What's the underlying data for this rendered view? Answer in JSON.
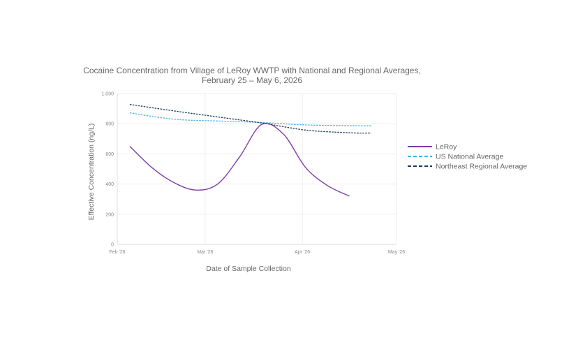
{
  "chart_data": {
    "type": "line",
    "title_line1": "Cocaine Concentration from Village of LeRoy WWTP with National and Regional Averages,",
    "title_line2": "February 25 – May 6, 2026",
    "xlabel": "Date of Sample Collection",
    "ylabel": "Effective Concentration (ng/L)",
    "x_ticks": [
      {
        "label": "Feb '26",
        "date": "2026-02-01"
      },
      {
        "label": "Mar '26",
        "date": "2026-03-01"
      },
      {
        "label": "Apr '26",
        "date": "2026-04-01"
      },
      {
        "label": "May '26",
        "date": "2026-05-01"
      }
    ],
    "y_ticks": [
      "0",
      "200",
      "400",
      "600",
      "800",
      "1,000"
    ],
    "xlim": [
      "2026-02-01",
      "2026-05-01"
    ],
    "ylim": [
      0,
      1000
    ],
    "grid": true,
    "legend_position": "right",
    "series": [
      {
        "name": "LeRoy",
        "color": "#7b3fa8",
        "dash": "solid",
        "points": [
          {
            "x": "2026-02-05",
            "y": 650
          },
          {
            "x": "2026-02-12",
            "y": 510
          },
          {
            "x": "2026-02-19",
            "y": 410
          },
          {
            "x": "2026-02-26",
            "y": 360
          },
          {
            "x": "2026-03-05",
            "y": 400
          },
          {
            "x": "2026-03-12",
            "y": 580
          },
          {
            "x": "2026-03-19",
            "y": 795
          },
          {
            "x": "2026-03-26",
            "y": 730
          },
          {
            "x": "2026-04-02",
            "y": 510
          },
          {
            "x": "2026-04-09",
            "y": 390
          },
          {
            "x": "2026-04-16",
            "y": 320
          }
        ]
      },
      {
        "name": "US National Average",
        "color": "#45b2e8",
        "dash": "dashed",
        "points": [
          {
            "x": "2026-02-05",
            "y": 872
          },
          {
            "x": "2026-02-19",
            "y": 830
          },
          {
            "x": "2026-03-05",
            "y": 818
          },
          {
            "x": "2026-03-19",
            "y": 808
          },
          {
            "x": "2026-04-02",
            "y": 792
          },
          {
            "x": "2026-04-16",
            "y": 787
          },
          {
            "x": "2026-04-23",
            "y": 786
          }
        ]
      },
      {
        "name": "Northeast Regional Average",
        "color": "#163a5f",
        "dash": "dashed",
        "points": [
          {
            "x": "2026-02-05",
            "y": 928
          },
          {
            "x": "2026-02-19",
            "y": 885
          },
          {
            "x": "2026-03-05",
            "y": 845
          },
          {
            "x": "2026-03-19",
            "y": 805
          },
          {
            "x": "2026-04-02",
            "y": 758
          },
          {
            "x": "2026-04-16",
            "y": 740
          },
          {
            "x": "2026-04-23",
            "y": 738
          }
        ]
      }
    ]
  }
}
